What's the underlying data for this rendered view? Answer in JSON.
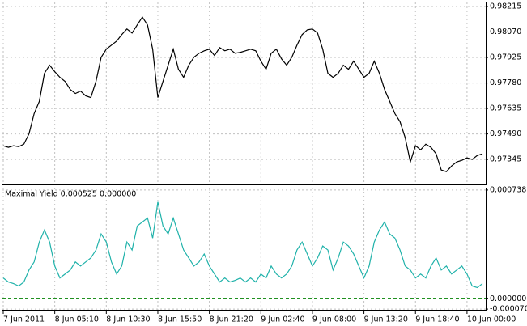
{
  "chart_data": [
    {
      "type": "line",
      "series": [
        {
          "color": "#000000",
          "values": [
            0.97423,
            0.97414,
            0.97423,
            0.97418,
            0.97432,
            0.97491,
            0.97606,
            0.97675,
            0.97835,
            0.97881,
            0.97844,
            0.97812,
            0.97789,
            0.97743,
            0.9772,
            0.97734,
            0.97707,
            0.97697,
            0.97789,
            0.97926,
            0.97972,
            0.97995,
            0.98018,
            0.98055,
            0.98087,
            0.98064,
            0.9811,
            0.98155,
            0.9811,
            0.97972,
            0.97697,
            0.97789,
            0.97881,
            0.97972,
            0.97858,
            0.97812,
            0.97881,
            0.97926,
            0.97949,
            0.97963,
            0.97972,
            0.97936,
            0.97981,
            0.97963,
            0.97972,
            0.97949,
            0.97954,
            0.97963,
            0.97972,
            0.97963,
            0.97904,
            0.97858,
            0.97949,
            0.97972,
            0.97917,
            0.97881,
            0.97926,
            0.97995,
            0.98055,
            0.98082,
            0.98087,
            0.98064,
            0.97972,
            0.97835,
            0.97812,
            0.97835,
            0.97881,
            0.97858,
            0.97904,
            0.97858,
            0.97812,
            0.97835,
            0.97904,
            0.97835,
            0.97743,
            0.97675,
            0.97606,
            0.9756,
            0.97469,
            0.97331,
            0.97423,
            0.974,
            0.97432,
            0.97414,
            0.97377,
            0.97285,
            0.97276,
            0.97308,
            0.97331,
            0.9734,
            0.97354,
            0.97345,
            0.97368,
            0.97377
          ]
        }
      ],
      "ylim": [
        0.97203,
        0.98238
      ],
      "yticks": [
        0.98215,
        {
          "value": 0.9807,
          "label": "0.98070"
        },
        0.97925,
        {
          "value": 0.9778,
          "label": "0.97780"
        },
        0.97635,
        {
          "value": 0.9749,
          "label": "0.97490"
        },
        0.97345
      ],
      "grid": true
    },
    {
      "type": "line",
      "title": "Maximal Yield 0.000525 0.000000",
      "categories": [
        "7 Jun 2011",
        null,
        null,
        null,
        null,
        null,
        null,
        null,
        null,
        null,
        "8 Jun 05:10",
        null,
        null,
        null,
        null,
        null,
        null,
        null,
        null,
        null,
        "8 Jun 10:30",
        null,
        null,
        null,
        null,
        null,
        null,
        null,
        null,
        null,
        "8 Jun 15:50",
        null,
        null,
        null,
        null,
        null,
        null,
        null,
        null,
        null,
        "8 Jun 21:20",
        null,
        null,
        null,
        null,
        null,
        null,
        null,
        null,
        null,
        "9 Jun 02:40",
        null,
        null,
        null,
        null,
        null,
        null,
        null,
        null,
        null,
        "9 Jun 08:00",
        null,
        null,
        null,
        null,
        null,
        null,
        null,
        null,
        null,
        "9 Jun 13:20",
        null,
        null,
        null,
        null,
        null,
        null,
        null,
        null,
        null,
        "9 Jun 18:40",
        null,
        null,
        null,
        null,
        null,
        null,
        null,
        null,
        null,
        "10 Jun 00:00",
        null,
        null,
        null
      ],
      "series": [
        {
          "color": "#20b2aa",
          "values": [
            0.000141,
            0.000114,
            0.000103,
            8.7e-05,
            0.000114,
            0.000195,
            0.00025,
            0.000385,
            0.000467,
            0.000385,
            0.000222,
            0.000141,
            0.000168,
            0.000195,
            0.00025,
            0.000222,
            0.00025,
            0.000277,
            0.000331,
            0.00044,
            0.000385,
            0.00025,
            0.000168,
            0.000222,
            0.000385,
            0.000331,
            0.000494,
            0.000521,
            0.000548,
            0.000412,
            0.000657,
            0.000494,
            0.00044,
            0.000548,
            0.00044,
            0.000331,
            0.000277,
            0.000222,
            0.00025,
            0.000304,
            0.000222,
            0.000168,
            0.000114,
            0.000141,
            0.000114,
            0.000125,
            0.000141,
            0.000114,
            0.000141,
            0.000114,
            0.000168,
            0.000141,
            0.000222,
            0.000168,
            0.000141,
            0.000168,
            0.000222,
            0.000331,
            0.000385,
            0.000304,
            0.000222,
            0.000277,
            0.000358,
            0.000331,
            0.000195,
            0.000277,
            0.000385,
            0.000358,
            0.000304,
            0.000222,
            0.000141,
            0.000222,
            0.000385,
            0.000467,
            0.000521,
            0.00044,
            0.000412,
            0.000331,
            0.000222,
            0.000195,
            0.000141,
            0.000168,
            0.000141,
            0.000222,
            0.000277,
            0.000195,
            0.000222,
            0.000168,
            0.000195,
            0.000222,
            0.000168,
            8.7e-05,
            7.6e-05,
            0.000103
          ]
        }
      ],
      "ylim": [
        -7.5e-05,
        0.000754
      ],
      "yticks": [
        0.000738,
        {
          "value": 0,
          "label": "0.000000"
        },
        {
          "value": -7e-05,
          "label": "-0.000070"
        }
      ],
      "grid": true
    }
  ]
}
